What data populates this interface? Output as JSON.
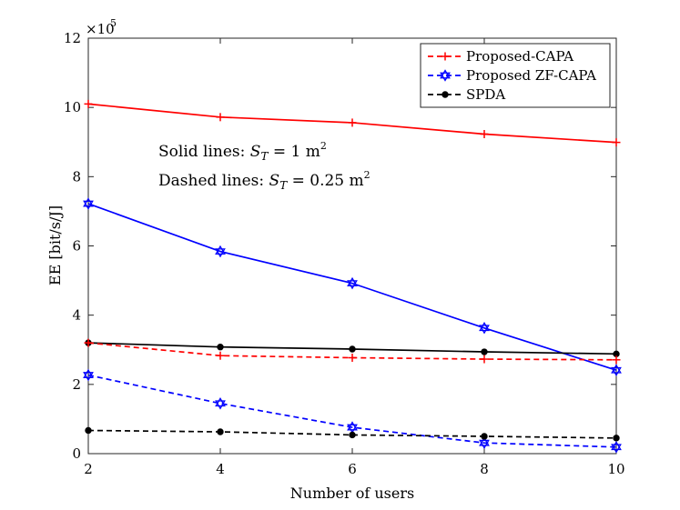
{
  "chart_data": {
    "type": "line",
    "xlabel": "Number of users",
    "ylabel": "EE [bit/s/J]",
    "y_multiplier": "×10",
    "y_multiplier_exp": "5",
    "x": [
      2,
      4,
      6,
      8,
      10
    ],
    "xlim": [
      2,
      10
    ],
    "ylim": [
      0,
      12
    ],
    "xticks": [
      "2",
      "4",
      "6",
      "8",
      "10"
    ],
    "yticks": [
      "0",
      "2",
      "4",
      "6",
      "8",
      "10",
      "12"
    ],
    "grid": false,
    "legend_position": "top-right",
    "legend": [
      {
        "label": "Proposed-CAPA",
        "color": "#ff0000",
        "marker": "plus"
      },
      {
        "label": "Proposed ZF-CAPA",
        "color": "#0000ff",
        "marker": "hexagram"
      },
      {
        "label": "SPDA",
        "color": "#000000",
        "marker": "dot"
      }
    ],
    "annotations": {
      "solid": {
        "prefix": "Solid lines: ",
        "var": "S",
        "sub": "T",
        "eq": " = 1 m",
        "sup": "2"
      },
      "dashed": {
        "prefix": "Dashed lines: ",
        "var": "S",
        "sub": "T",
        "eq": " = 0.25 m",
        "sup": "2"
      }
    },
    "series": [
      {
        "name": "Proposed-CAPA (S_T = 1 m²)",
        "color": "#ff0000",
        "style": "solid",
        "marker": "plus",
        "values": [
          10.1,
          9.72,
          9.56,
          9.23,
          8.99
        ]
      },
      {
        "name": "Proposed ZF-CAPA (S_T = 1 m²)",
        "color": "#0000ff",
        "style": "solid",
        "marker": "hexagram",
        "values": [
          7.22,
          5.84,
          4.92,
          3.63,
          2.41
        ]
      },
      {
        "name": "SPDA (S_T = 1 m²)",
        "color": "#000000",
        "style": "solid",
        "marker": "dot",
        "values": [
          3.2,
          3.08,
          3.02,
          2.94,
          2.88
        ]
      },
      {
        "name": "Proposed-CAPA (S_T = 0.25 m²)",
        "color": "#ff0000",
        "style": "dashed",
        "marker": "plus",
        "values": [
          3.2,
          2.83,
          2.77,
          2.73,
          2.71
        ]
      },
      {
        "name": "Proposed ZF-CAPA (S_T = 0.25 m²)",
        "color": "#0000ff",
        "style": "dashed",
        "marker": "hexagram",
        "values": [
          2.27,
          1.45,
          0.76,
          0.31,
          0.19
        ]
      },
      {
        "name": "SPDA (S_T = 0.25 m²)",
        "color": "#000000",
        "style": "dashed",
        "marker": "dot",
        "values": [
          0.67,
          0.63,
          0.54,
          0.5,
          0.45
        ]
      }
    ]
  }
}
